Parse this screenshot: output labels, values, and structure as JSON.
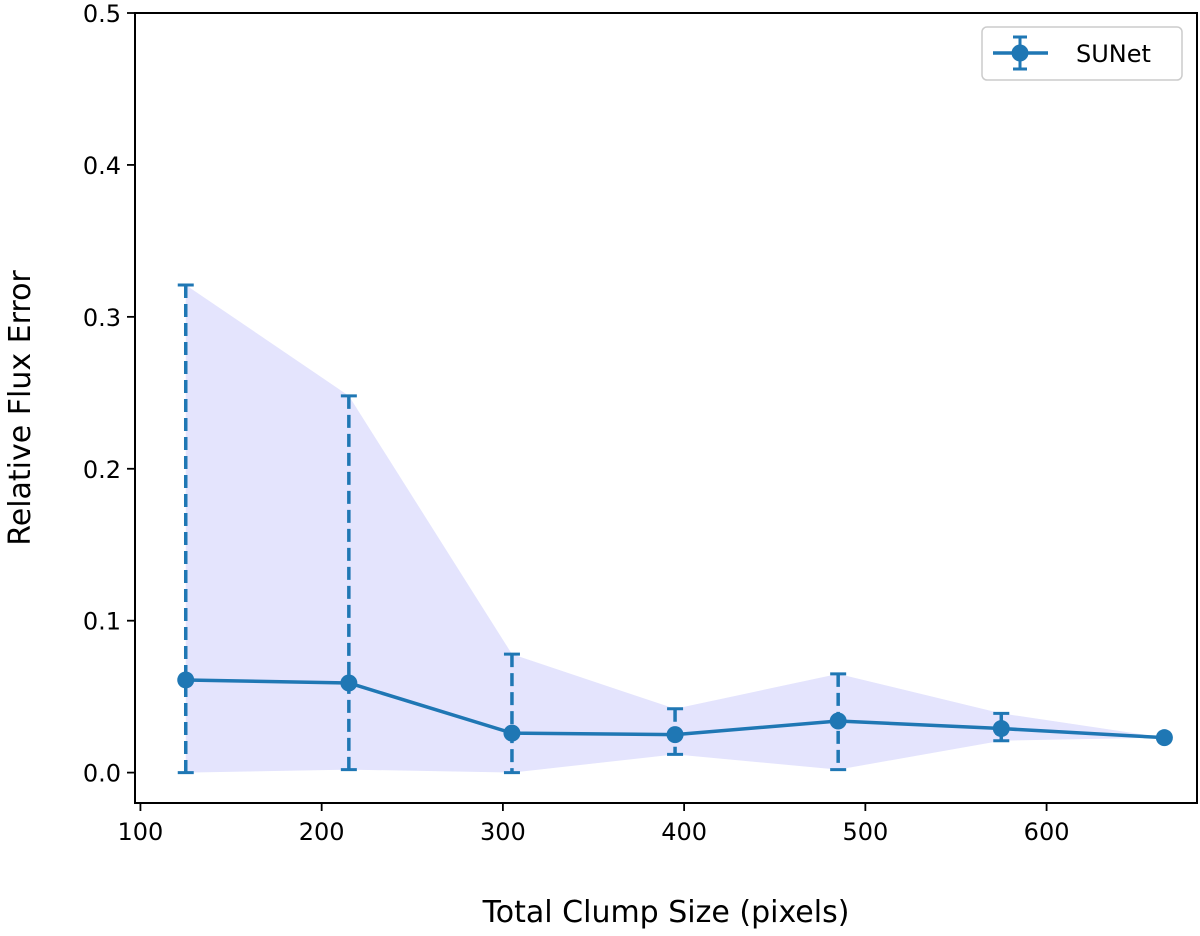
{
  "chart_data": {
    "type": "line",
    "xlabel": "Total Clump Size (pixels)",
    "ylabel": "Relative Flux Error",
    "xlim": [
      97,
      683
    ],
    "ylim": [
      -0.02,
      0.5
    ],
    "xticks": [
      100,
      200,
      300,
      400,
      500,
      600
    ],
    "yticks": [
      0.0,
      0.1,
      0.2,
      0.3,
      0.4,
      0.5
    ],
    "xtick_labels": [
      "100",
      "200",
      "300",
      "400",
      "500",
      "600"
    ],
    "ytick_labels": [
      "0.0",
      "0.1",
      "0.2",
      "0.3",
      "0.4",
      "0.5"
    ],
    "grid": false,
    "legend_position": "top-right",
    "band_color": "#e4e4fd",
    "series": [
      {
        "name": "SUNet",
        "color": "#1f77b4",
        "x": [
          125,
          215,
          305,
          395,
          485,
          575,
          665
        ],
        "y": [
          0.061,
          0.059,
          0.026,
          0.025,
          0.034,
          0.029,
          0.023
        ],
        "lower": [
          0.0,
          0.002,
          0.0,
          0.012,
          0.002,
          0.021,
          0.023
        ],
        "upper": [
          0.321,
          0.248,
          0.078,
          0.042,
          0.065,
          0.039,
          0.023
        ]
      }
    ]
  }
}
